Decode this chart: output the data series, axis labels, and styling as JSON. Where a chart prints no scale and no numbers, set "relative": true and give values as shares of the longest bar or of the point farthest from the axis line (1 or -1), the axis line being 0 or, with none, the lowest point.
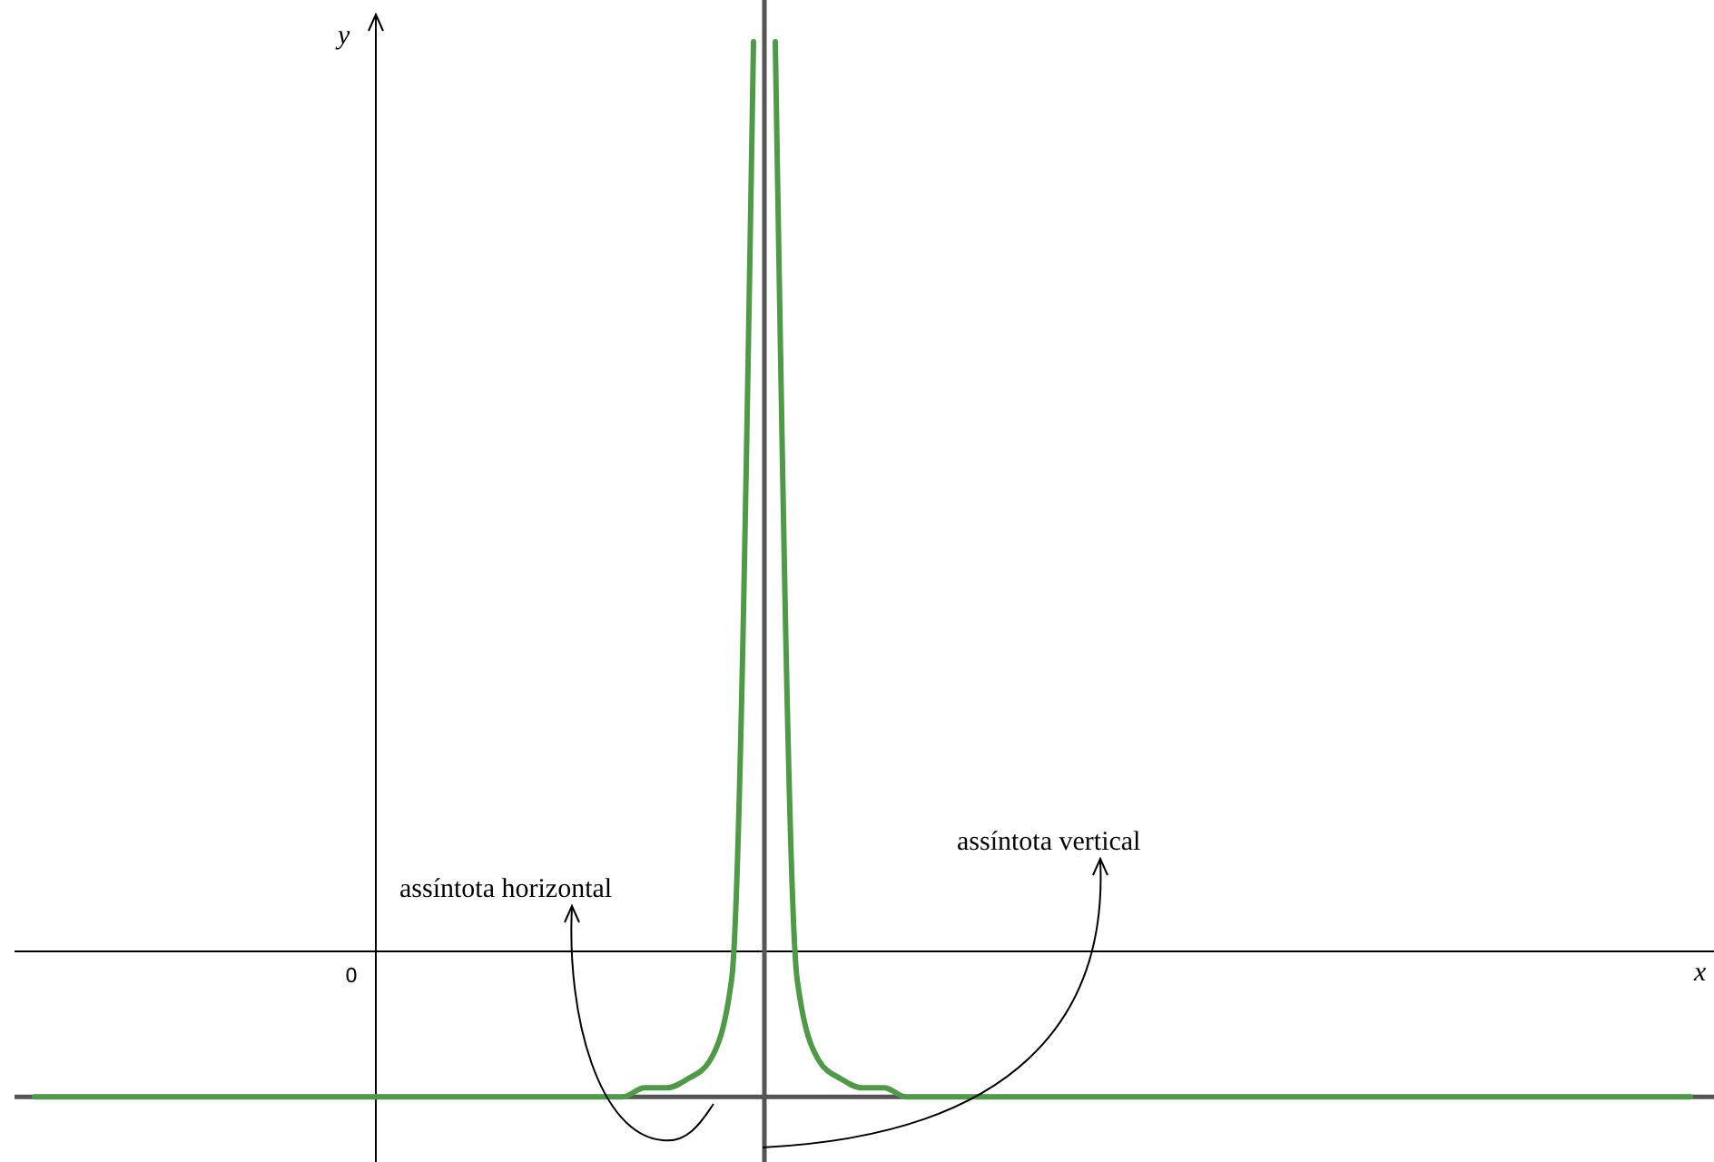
{
  "chart_data": {
    "type": "line",
    "relative": true,
    "xlabel": "x",
    "ylabel": "y",
    "categories": [
      null,
      null,
      null,
      null,
      null,
      null,
      null,
      null,
      null,
      null,
      null,
      null,
      null,
      null,
      null,
      null,
      null,
      null,
      null,
      null,
      null,
      null,
      null,
      null,
      null,
      null,
      null,
      null,
      null,
      null,
      null,
      null,
      null,
      null,
      null,
      null,
      null,
      null,
      null,
      null,
      null,
      null,
      null,
      null,
      null,
      null,
      null,
      null,
      null,
      null,
      null,
      null,
      null,
      null,
      null,
      null,
      null,
      null,
      null,
      null,
      null,
      null,
      null,
      null,
      null,
      null,
      null,
      null,
      null,
      null,
      null,
      null,
      null,
      null,
      null,
      null,
      null
    ],
    "series": [
      {
        "color": "#4f9a47",
        "values": [
          -0.16,
          -0.16,
          -0.16,
          -0.16,
          -0.16,
          -0.16,
          -0.16,
          -0.16,
          -0.16,
          -0.16,
          -0.16,
          -0.16,
          -0.16,
          -0.16,
          -0.16,
          -0.16,
          -0.16,
          -0.16,
          -0.16,
          -0.16,
          -0.16,
          -0.16,
          -0.16,
          -0.16,
          -0.16,
          -0.16,
          -0.16,
          -0.16,
          -0.15,
          -0.15,
          -0.14,
          -0.12,
          -0.03,
          1,
          null,
          null,
          null,
          null,
          null,
          null,
          null,
          null,
          null,
          null,
          null,
          null,
          null,
          null,
          null,
          null,
          null,
          null,
          null,
          null,
          null,
          null,
          null,
          null,
          null,
          null,
          null,
          null,
          null,
          null,
          null,
          null,
          null,
          null,
          null,
          null,
          null,
          null,
          null,
          null,
          null,
          null,
          null
        ]
      },
      {
        "color": "#4f9a47",
        "values": [
          null,
          null,
          null,
          null,
          null,
          null,
          null,
          null,
          null,
          null,
          null,
          null,
          null,
          null,
          null,
          null,
          null,
          null,
          null,
          null,
          null,
          null,
          null,
          null,
          null,
          null,
          null,
          null,
          null,
          null,
          null,
          null,
          null,
          null,
          1,
          -0.03,
          -0.12,
          -0.14,
          -0.15,
          -0.15,
          -0.16,
          -0.16,
          -0.16,
          -0.16,
          -0.16,
          -0.16,
          -0.16,
          -0.16,
          -0.16,
          -0.16,
          -0.16,
          -0.16,
          -0.16,
          -0.16,
          -0.16,
          -0.16,
          -0.16,
          -0.16,
          -0.16,
          -0.16,
          -0.16,
          -0.16,
          -0.16,
          -0.16,
          -0.16,
          -0.16,
          -0.16,
          -0.16,
          -0.16,
          -0.16,
          -0.16,
          -0.16,
          -0.16,
          -0.16,
          -0.16,
          -0.16,
          -0.16
        ]
      }
    ],
    "ref_lines": [
      {
        "axis": "y",
        "value": -0.16,
        "color": "#555555"
      }
    ],
    "annotations": [
      "0",
      "assíntota horizontal",
      "assíntota vertical"
    ]
  }
}
